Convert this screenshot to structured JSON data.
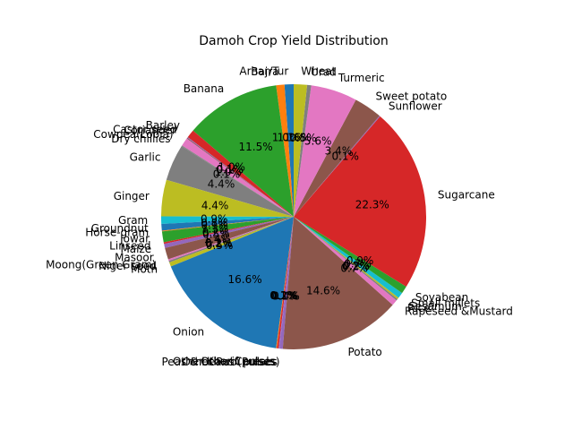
{
  "chart_data": {
    "type": "pie",
    "title": "Damoh Crop Yield Distribution",
    "start_angle_deg": 90,
    "direction": "counterclockwise",
    "slices": [
      {
        "label": "Arhar/Tur",
        "value": 1.1,
        "pct_label": "1.1%",
        "color": "#1f77b4"
      },
      {
        "label": "Bajra",
        "value": 1.0,
        "pct_label": "1.0%",
        "color": "#ff7f0e"
      },
      {
        "label": "Banana",
        "value": 11.5,
        "pct_label": "11.5%",
        "color": "#2ca02c"
      },
      {
        "label": "Barley",
        "value": 1.0,
        "pct_label": "1.0%",
        "color": "#d62728"
      },
      {
        "label": "Castor seed",
        "value": 0.1,
        "pct_label": "0.1%",
        "color": "#9467bd"
      },
      {
        "label": "Coriander",
        "value": 0.1,
        "pct_label": "0.1%",
        "color": "#8c564b"
      },
      {
        "label": "Cowpea(Lobia)",
        "value": 1.0,
        "pct_label": "1.0%",
        "color": "#e377c2"
      },
      {
        "label": "Dry chillies",
        "value": 0.1,
        "pct_label": "0.1%",
        "color": "#7f7f7f"
      },
      {
        "label": "Garlic",
        "value": 4.4,
        "pct_label": "4.4%",
        "color": "#7f7f7f"
      },
      {
        "label": "Ginger",
        "value": 4.4,
        "pct_label": "4.4%",
        "color": "#bcbd22"
      },
      {
        "label": "Gram",
        "value": 0.9,
        "pct_label": "0.9%",
        "color": "#17becf"
      },
      {
        "label": "Groundnut",
        "value": 0.8,
        "pct_label": "0.8%",
        "color": "#1f77b4"
      },
      {
        "label": "Horse-gram",
        "value": 0.1,
        "pct_label": "0.1%",
        "color": "#ff7f0e"
      },
      {
        "label": "Jowar",
        "value": 1.3,
        "pct_label": "1.3%",
        "color": "#2ca02c"
      },
      {
        "label": "Linseed",
        "value": 0.2,
        "pct_label": "0.2%",
        "color": "#d62728"
      },
      {
        "label": "Maize",
        "value": 0.5,
        "pct_label": "0.5%",
        "color": "#9467bd"
      },
      {
        "label": "Masoor",
        "value": 1.4,
        "pct_label": "1.4%",
        "color": "#8c564b"
      },
      {
        "label": "Moong(Green Gram)",
        "value": 0.2,
        "pct_label": "0.2%",
        "color": "#e377c2"
      },
      {
        "label": "Niger seed",
        "value": 0.2,
        "pct_label": "0.2%",
        "color": "#7f7f7f"
      },
      {
        "label": "Moth",
        "value": 0.5,
        "pct_label": "0.5%",
        "color": "#bcbd22"
      },
      {
        "label": "Onion",
        "value": 16.6,
        "pct_label": "16.6%",
        "color": "#1f77b4"
      },
      {
        "label": "Other Cereals",
        "value": 0.1,
        "pct_label": "0.1%",
        "color": "#ff7f0e"
      },
      {
        "label": "Other Kharif pulses",
        "value": 0.2,
        "pct_label": "0.2%",
        "color": "#d62728"
      },
      {
        "label": "Other Rabi pulses",
        "value": 0.1,
        "pct_label": "0.1%",
        "color": "#9467bd"
      },
      {
        "label": "Peas & beans (Pulses)",
        "value": 0.4,
        "pct_label": "0.4%",
        "color": "#9467bd"
      },
      {
        "label": "Potato",
        "value": 14.6,
        "pct_label": "14.6%",
        "color": "#8c564b"
      },
      {
        "label": "Rapeseed &Mustard",
        "value": 0.7,
        "pct_label": "0.7%",
        "color": "#e377c2"
      },
      {
        "label": "Rice",
        "value": 0.2,
        "pct_label": "0.2%",
        "color": "#7f7f7f"
      },
      {
        "label": "Sesamum",
        "value": 0.2,
        "pct_label": "0.2%",
        "color": "#bcbd22"
      },
      {
        "label": "Small millets",
        "value": 0.7,
        "pct_label": "0.7%",
        "color": "#17becf"
      },
      {
        "label": "Soyabean",
        "value": 0.9,
        "pct_label": "0.9%",
        "color": "#2ca02c"
      },
      {
        "label": "Sugarcane",
        "value": 22.3,
        "pct_label": "22.3%",
        "color": "#d62728"
      },
      {
        "label": "Sunflower",
        "value": 0.1,
        "pct_label": "0.1%",
        "color": "#9467bd"
      },
      {
        "label": "Sweet potato",
        "value": 3.4,
        "pct_label": "3.4%",
        "color": "#8c564b"
      },
      {
        "label": "Turmeric",
        "value": 5.6,
        "pct_label": "5.6%",
        "color": "#e377c2"
      },
      {
        "label": "Urad",
        "value": 0.5,
        "pct_label": "0.5%",
        "color": "#7f7f7f"
      },
      {
        "label": "Wheat",
        "value": 1.6,
        "pct_label": "1.6%",
        "color": "#bcbd22"
      }
    ]
  }
}
